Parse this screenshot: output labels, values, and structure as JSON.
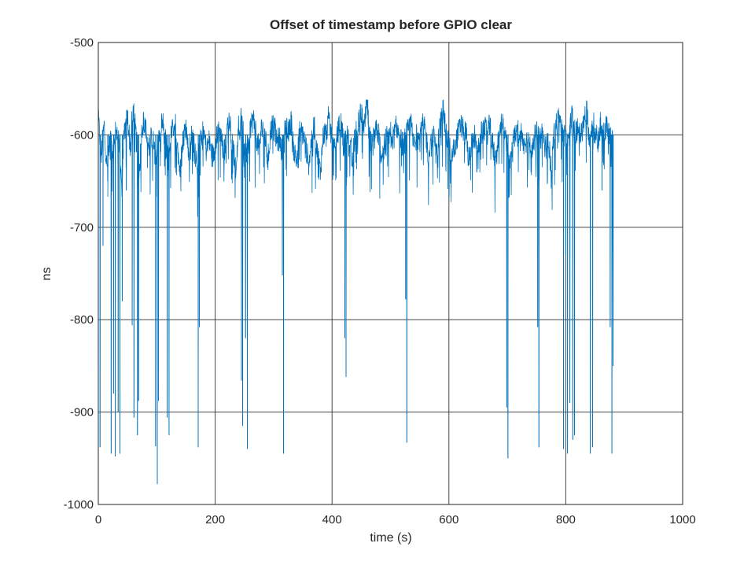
{
  "chart_data": {
    "type": "line",
    "title": "Offset of timestamp before GPIO clear",
    "xlabel": "time (s)",
    "ylabel": "ns",
    "xlim": [
      0,
      1000
    ],
    "ylim": [
      -1000,
      -500
    ],
    "xticks": [
      0,
      200,
      400,
      600,
      800,
      1000
    ],
    "yticks": [
      -1000,
      -900,
      -800,
      -700,
      -600,
      -500
    ],
    "xtick_labels": [
      "0",
      "200",
      "400",
      "600",
      "800",
      "1000"
    ],
    "ytick_labels": [
      "-1000",
      "-900",
      "-800",
      "-700",
      "-600",
      "-500"
    ],
    "grid": true,
    "legend": "none",
    "series": [
      {
        "color": "#0072bd",
        "x_range": [
          0,
          883
        ],
        "baseline_approx": -605,
        "noise_range_approx": [
          -680,
          -565
        ],
        "x": [
          0,
          5,
          10,
          15,
          20,
          25,
          30,
          35,
          40,
          45,
          50,
          55,
          60,
          65,
          70,
          75,
          80,
          85,
          90,
          95,
          100,
          105,
          110,
          115,
          120,
          125,
          130,
          135,
          140,
          145,
          150,
          155,
          160,
          165,
          170,
          175,
          180,
          185,
          190,
          195,
          200,
          205,
          210,
          215,
          220,
          225,
          230,
          235,
          240,
          245,
          250,
          255,
          260,
          265,
          270,
          275,
          280,
          285,
          290,
          295,
          300,
          305,
          310,
          315,
          320,
          325,
          330,
          335,
          340,
          345,
          350,
          355,
          360,
          365,
          370,
          375,
          380,
          385,
          390,
          395,
          400,
          405,
          410,
          415,
          420,
          425,
          430,
          435,
          440,
          445,
          450,
          455,
          460,
          465,
          470,
          475,
          480,
          485,
          490,
          495,
          500,
          505,
          510,
          515,
          520,
          525,
          530,
          535,
          540,
          545,
          550,
          555,
          560,
          565,
          570,
          575,
          580,
          585,
          590,
          595,
          600,
          605,
          610,
          615,
          620,
          625,
          630,
          635,
          640,
          645,
          650,
          655,
          660,
          665,
          670,
          675,
          680,
          685,
          690,
          695,
          700,
          705,
          710,
          715,
          720,
          725,
          730,
          735,
          740,
          745,
          750,
          755,
          760,
          765,
          770,
          775,
          780,
          785,
          790,
          795,
          800,
          805,
          810,
          815,
          820,
          825,
          830,
          835,
          840,
          845,
          850,
          855,
          860,
          865,
          870,
          875,
          880
        ],
        "y": [
          -583,
          -620,
          -590,
          -640,
          -600,
          -625,
          -588,
          -610,
          -650,
          -595,
          -580,
          -615,
          -570,
          -605,
          -640,
          -590,
          -585,
          -620,
          -598,
          -612,
          -632,
          -594,
          -585,
          -608,
          -628,
          -600,
          -586,
          -614,
          -640,
          -604,
          -590,
          -622,
          -598,
          -610,
          -634,
          -600,
          -592,
          -618,
          -606,
          -626,
          -612,
          -590,
          -604,
          -622,
          -596,
          -585,
          -610,
          -634,
          -600,
          -588,
          -606,
          -625,
          -592,
          -582,
          -600,
          -616,
          -590,
          -598,
          -630,
          -596,
          -584,
          -608,
          -604,
          -620,
          -590,
          -600,
          -585,
          -618,
          -628,
          -594,
          -598,
          -612,
          -630,
          -605,
          -590,
          -620,
          -640,
          -600,
          -596,
          -588,
          -604,
          -620,
          -596,
          -586,
          -612,
          -600,
          -608,
          -624,
          -600,
          -590,
          -574,
          -596,
          -564,
          -608,
          -614,
          -596,
          -600,
          -632,
          -610,
          -600,
          -596,
          -604,
          -592,
          -600,
          -610,
          -606,
          -596,
          -588,
          -614,
          -600,
          -606,
          -590,
          -596,
          -624,
          -610,
          -600,
          -616,
          -590,
          -570,
          -600,
          -608,
          -624,
          -612,
          -600,
          -590,
          -594,
          -600,
          -622,
          -606,
          -600,
          -614,
          -600,
          -592,
          -598,
          -590,
          -612,
          -630,
          -604,
          -584,
          -600,
          -612,
          -630,
          -608,
          -600,
          -596,
          -606,
          -612,
          -600,
          -620,
          -604,
          -598,
          -608,
          -596,
          -616,
          -600,
          -640,
          -600,
          -586,
          -582,
          -598,
          -604,
          -612,
          -576,
          -606,
          -590,
          -600,
          -592,
          -570,
          -602,
          -590,
          -598,
          -606,
          -590,
          -596,
          -588,
          -606,
          -596
        ]
      }
    ],
    "spikes": [
      {
        "x": 3,
        "y": -938
      },
      {
        "x": 8,
        "y": -720
      },
      {
        "x": 16,
        "y": -650
      },
      {
        "x": 22,
        "y": -945
      },
      {
        "x": 26,
        "y": -880
      },
      {
        "x": 29,
        "y": -948
      },
      {
        "x": 34,
        "y": -900
      },
      {
        "x": 37,
        "y": -945
      },
      {
        "x": 41,
        "y": -780
      },
      {
        "x": 48,
        "y": -660
      },
      {
        "x": 58,
        "y": -806
      },
      {
        "x": 61,
        "y": -906
      },
      {
        "x": 67,
        "y": -925
      },
      {
        "x": 69,
        "y": -888
      },
      {
        "x": 98,
        "y": -937
      },
      {
        "x": 101,
        "y": -978
      },
      {
        "x": 103,
        "y": -888
      },
      {
        "x": 118,
        "y": -906
      },
      {
        "x": 121,
        "y": -925
      },
      {
        "x": 171,
        "y": -938
      },
      {
        "x": 173,
        "y": -808
      },
      {
        "x": 245,
        "y": -866
      },
      {
        "x": 247,
        "y": -915
      },
      {
        "x": 252,
        "y": -820
      },
      {
        "x": 255,
        "y": -940
      },
      {
        "x": 315,
        "y": -752
      },
      {
        "x": 317,
        "y": -945
      },
      {
        "x": 422,
        "y": -820
      },
      {
        "x": 424,
        "y": -862
      },
      {
        "x": 526,
        "y": -778
      },
      {
        "x": 528,
        "y": -933
      },
      {
        "x": 699,
        "y": -895
      },
      {
        "x": 701,
        "y": -950
      },
      {
        "x": 752,
        "y": -808
      },
      {
        "x": 754,
        "y": -938
      },
      {
        "x": 796,
        "y": -940
      },
      {
        "x": 800,
        "y": -730
      },
      {
        "x": 803,
        "y": -945
      },
      {
        "x": 807,
        "y": -890
      },
      {
        "x": 812,
        "y": -930
      },
      {
        "x": 815,
        "y": -925
      },
      {
        "x": 842,
        "y": -945
      },
      {
        "x": 846,
        "y": -938
      },
      {
        "x": 862,
        "y": -660
      },
      {
        "x": 876,
        "y": -808
      },
      {
        "x": 879,
        "y": -945
      },
      {
        "x": 881,
        "y": -850
      }
    ]
  }
}
